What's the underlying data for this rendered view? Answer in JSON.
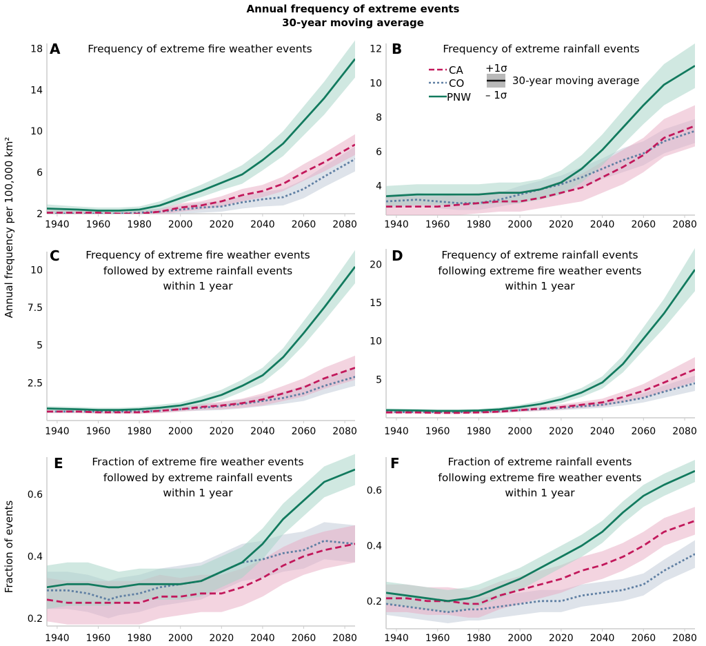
{
  "figure": {
    "title_line1": "Annual frequency of extreme events",
    "title_line2": "30-year moving average",
    "ylabel_top": "Annual frequency per 100,000 km²",
    "ylabel_bottom": "Fraction of events"
  },
  "legend": {
    "series": [
      {
        "name": "CA",
        "style": "dashed",
        "color": "#c2185b"
      },
      {
        "name": "CO",
        "style": "dotted",
        "color": "#5f7fa3"
      },
      {
        "name": "PNW",
        "style": "solid",
        "color": "#127a5e"
      }
    ],
    "band_upper": "+1σ",
    "band_lower": "– 1σ",
    "band_label": "30-year moving average"
  },
  "colors": {
    "CA": "#c2185b",
    "CO": "#5f7fa3",
    "PNW": "#127a5e",
    "CA_band": "#e8a9c2",
    "CO_band": "#c3ccd8",
    "PNW_band": "#a9d6c8"
  },
  "chart_data": [
    {
      "panel": "A",
      "type": "line",
      "title": [
        "Frequency of extreme fire weather events"
      ],
      "xlabel": "",
      "ylabel": "Annual frequency per 100,000 km²",
      "xlim": [
        1935,
        2085
      ],
      "ylim": [
        2,
        18.5
      ],
      "xticks": [
        1940,
        1960,
        1980,
        2000,
        2020,
        2040,
        2060,
        2080
      ],
      "yticks": [
        2,
        6,
        10,
        14,
        18
      ],
      "x": [
        1935,
        1950,
        1960,
        1970,
        1980,
        1990,
        2000,
        2010,
        2020,
        2030,
        2040,
        2050,
        2060,
        2070,
        2085
      ],
      "series": [
        {
          "name": "PNW",
          "values": [
            2.5,
            2.4,
            2.3,
            2.3,
            2.4,
            2.8,
            3.5,
            4.2,
            5.0,
            5.8,
            7.2,
            8.8,
            11.0,
            13.2,
            17.0
          ],
          "sd": [
            0.4,
            0.3,
            0.3,
            0.3,
            0.3,
            0.4,
            0.5,
            0.6,
            0.7,
            0.9,
            1.0,
            1.2,
            1.4,
            1.6,
            1.8
          ]
        },
        {
          "name": "CA",
          "values": [
            2.1,
            2.1,
            2.1,
            2.0,
            2.0,
            2.2,
            2.6,
            2.8,
            3.2,
            3.8,
            4.2,
            4.9,
            6.0,
            7.0,
            8.7
          ],
          "sd": [
            0.3,
            0.3,
            0.3,
            0.3,
            0.3,
            0.3,
            0.4,
            0.4,
            0.5,
            0.6,
            0.6,
            0.7,
            0.8,
            0.9,
            1.0
          ]
        },
        {
          "name": "CO",
          "values": [
            2.0,
            2.0,
            2.0,
            2.0,
            2.1,
            2.2,
            2.4,
            2.6,
            2.7,
            3.1,
            3.4,
            3.6,
            4.4,
            5.6,
            7.3
          ],
          "sd": [
            0.3,
            0.3,
            0.3,
            0.3,
            0.3,
            0.3,
            0.4,
            0.5,
            0.5,
            0.6,
            0.7,
            0.8,
            0.9,
            1.0,
            1.2
          ]
        }
      ]
    },
    {
      "panel": "B",
      "type": "line",
      "title": [
        "Frequency of extreme rainfall events"
      ],
      "xlabel": "",
      "ylabel": "",
      "xlim": [
        1935,
        2085
      ],
      "ylim": [
        2.3,
        12.3
      ],
      "xticks": [
        1940,
        1960,
        1980,
        2000,
        2020,
        2040,
        2060,
        2080
      ],
      "yticks": [
        4,
        6,
        8,
        10,
        12
      ],
      "x": [
        1935,
        1950,
        1960,
        1970,
        1980,
        1990,
        2000,
        2010,
        2020,
        2030,
        2040,
        2050,
        2060,
        2070,
        2085
      ],
      "series": [
        {
          "name": "PNW",
          "values": [
            3.4,
            3.5,
            3.5,
            3.5,
            3.5,
            3.6,
            3.6,
            3.8,
            4.2,
            5.0,
            6.1,
            7.4,
            8.7,
            9.9,
            11.0
          ],
          "sd": [
            0.6,
            0.6,
            0.6,
            0.6,
            0.6,
            0.6,
            0.6,
            0.6,
            0.7,
            0.8,
            0.9,
            1.0,
            1.1,
            1.2,
            1.3
          ]
        },
        {
          "name": "CA",
          "values": [
            2.8,
            2.8,
            2.8,
            2.9,
            3.0,
            3.1,
            3.1,
            3.3,
            3.6,
            3.9,
            4.5,
            5.1,
            5.8,
            6.8,
            7.5
          ],
          "sd": [
            0.6,
            0.6,
            0.6,
            0.6,
            0.6,
            0.6,
            0.6,
            0.6,
            0.7,
            0.8,
            0.9,
            1.0,
            1.0,
            1.1,
            1.2
          ]
        },
        {
          "name": "CO",
          "values": [
            3.1,
            3.2,
            3.1,
            3.0,
            3.0,
            3.2,
            3.5,
            3.8,
            4.1,
            4.5,
            5.0,
            5.5,
            5.9,
            6.6,
            7.2
          ],
          "sd": [
            0.4,
            0.4,
            0.4,
            0.4,
            0.4,
            0.4,
            0.5,
            0.5,
            0.5,
            0.6,
            0.6,
            0.7,
            0.7,
            0.7,
            0.7
          ]
        }
      ]
    },
    {
      "panel": "C",
      "type": "line",
      "title": [
        "Frequency of extreme fire weather events",
        "followed by extreme rainfall events",
        "within 1 year"
      ],
      "xlabel": "",
      "ylabel": "Annual frequency per 100,000 km²",
      "xlim": [
        1935,
        2085
      ],
      "ylim": [
        0,
        11.2
      ],
      "xticks": [
        1940,
        1960,
        1980,
        2000,
        2020,
        2040,
        2060,
        2080
      ],
      "yticks": [
        2.5,
        5,
        7.5,
        10
      ],
      "ytick_labels": [
        "2.5",
        "5",
        "7.5",
        "10"
      ],
      "x": [
        1935,
        1950,
        1960,
        1970,
        1980,
        1990,
        2000,
        2010,
        2020,
        2030,
        2040,
        2050,
        2060,
        2070,
        2085
      ],
      "series": [
        {
          "name": "PNW",
          "values": [
            0.8,
            0.75,
            0.7,
            0.7,
            0.75,
            0.85,
            1.0,
            1.3,
            1.7,
            2.3,
            3.0,
            4.2,
            5.8,
            7.5,
            10.2
          ],
          "sd": [
            0.15,
            0.15,
            0.15,
            0.15,
            0.15,
            0.2,
            0.2,
            0.3,
            0.35,
            0.4,
            0.5,
            0.6,
            0.8,
            0.9,
            1.1
          ]
        },
        {
          "name": "CA",
          "values": [
            0.6,
            0.6,
            0.55,
            0.55,
            0.55,
            0.65,
            0.75,
            0.9,
            1.0,
            1.15,
            1.4,
            1.8,
            2.2,
            2.8,
            3.5
          ],
          "sd": [
            0.1,
            0.1,
            0.1,
            0.1,
            0.1,
            0.15,
            0.15,
            0.2,
            0.25,
            0.3,
            0.4,
            0.5,
            0.6,
            0.7,
            0.8
          ]
        },
        {
          "name": "CO",
          "values": [
            0.6,
            0.6,
            0.6,
            0.6,
            0.6,
            0.65,
            0.75,
            0.85,
            0.95,
            1.1,
            1.3,
            1.5,
            1.8,
            2.3,
            2.9
          ],
          "sd": [
            0.1,
            0.1,
            0.1,
            0.1,
            0.1,
            0.15,
            0.15,
            0.2,
            0.25,
            0.3,
            0.35,
            0.4,
            0.5,
            0.55,
            0.6
          ]
        }
      ]
    },
    {
      "panel": "D",
      "type": "line",
      "title": [
        "Frequency of extreme rainfall events",
        "following extreme fire weather events",
        "within 1 year"
      ],
      "xlabel": "",
      "ylabel": "",
      "xlim": [
        1935,
        2085
      ],
      "ylim": [
        0,
        22
      ],
      "xticks": [
        1940,
        1960,
        1980,
        2000,
        2020,
        2040,
        2060,
        2080
      ],
      "yticks": [
        5,
        10,
        15,
        20
      ],
      "x": [
        1935,
        1950,
        1960,
        1970,
        1980,
        1990,
        2000,
        2010,
        2020,
        2030,
        2040,
        2050,
        2060,
        2070,
        2085
      ],
      "series": [
        {
          "name": "PNW",
          "values": [
            1.0,
            0.95,
            0.9,
            0.9,
            0.95,
            1.1,
            1.4,
            1.8,
            2.4,
            3.3,
            4.6,
            7.0,
            10.3,
            13.6,
            19.3
          ],
          "sd": [
            0.2,
            0.2,
            0.2,
            0.2,
            0.2,
            0.25,
            0.3,
            0.4,
            0.5,
            0.6,
            0.8,
            1.1,
            1.5,
            1.9,
            2.8
          ]
        },
        {
          "name": "CA",
          "values": [
            0.7,
            0.7,
            0.65,
            0.65,
            0.7,
            0.8,
            1.0,
            1.2,
            1.4,
            1.7,
            2.0,
            2.7,
            3.5,
            4.6,
            6.3
          ],
          "sd": [
            0.15,
            0.15,
            0.15,
            0.15,
            0.15,
            0.2,
            0.25,
            0.3,
            0.35,
            0.4,
            0.5,
            0.7,
            0.9,
            1.2,
            1.6
          ]
        },
        {
          "name": "CO",
          "values": [
            0.75,
            0.75,
            0.75,
            0.75,
            0.8,
            0.85,
            1.0,
            1.15,
            1.3,
            1.5,
            1.7,
            2.1,
            2.6,
            3.4,
            4.5
          ],
          "sd": [
            0.15,
            0.15,
            0.15,
            0.15,
            0.15,
            0.2,
            0.2,
            0.25,
            0.3,
            0.35,
            0.4,
            0.5,
            0.6,
            0.8,
            1.0
          ]
        }
      ]
    },
    {
      "panel": "E",
      "type": "line",
      "title": [
        "Fraction of extreme fire weather events",
        "followed by extreme rainfall events",
        "within 1 year"
      ],
      "xlabel": "",
      "ylabel": "Fraction of events",
      "xlim": [
        1935,
        2085
      ],
      "ylim": [
        0.175,
        0.72
      ],
      "xticks": [
        1940,
        1960,
        1980,
        2000,
        2020,
        2040,
        2060,
        2080
      ],
      "yticks": [
        0.2,
        0.4,
        0.6
      ],
      "x": [
        1935,
        1945,
        1955,
        1965,
        1970,
        1980,
        1990,
        2000,
        2010,
        2020,
        2030,
        2040,
        2050,
        2060,
        2070,
        2085
      ],
      "series": [
        {
          "name": "PNW",
          "values": [
            0.3,
            0.31,
            0.31,
            0.3,
            0.3,
            0.31,
            0.31,
            0.31,
            0.32,
            0.35,
            0.38,
            0.44,
            0.52,
            0.58,
            0.64,
            0.68
          ],
          "sd": [
            0.07,
            0.07,
            0.07,
            0.06,
            0.05,
            0.05,
            0.05,
            0.05,
            0.05,
            0.05,
            0.05,
            0.05,
            0.05,
            0.05,
            0.05,
            0.05
          ]
        },
        {
          "name": "CA",
          "values": [
            0.26,
            0.25,
            0.25,
            0.25,
            0.25,
            0.25,
            0.27,
            0.27,
            0.28,
            0.28,
            0.3,
            0.33,
            0.37,
            0.4,
            0.42,
            0.44
          ],
          "sd": [
            0.07,
            0.07,
            0.07,
            0.07,
            0.07,
            0.07,
            0.07,
            0.06,
            0.06,
            0.06,
            0.06,
            0.06,
            0.06,
            0.06,
            0.06,
            0.06
          ]
        },
        {
          "name": "CO",
          "values": [
            0.29,
            0.29,
            0.28,
            0.26,
            0.27,
            0.28,
            0.3,
            0.31,
            0.32,
            0.35,
            0.38,
            0.39,
            0.41,
            0.42,
            0.45,
            0.44
          ],
          "sd": [
            0.06,
            0.06,
            0.06,
            0.06,
            0.06,
            0.06,
            0.06,
            0.06,
            0.06,
            0.06,
            0.06,
            0.06,
            0.06,
            0.06,
            0.06,
            0.06
          ]
        }
      ]
    },
    {
      "panel": "F",
      "type": "line",
      "title": [
        "Fraction of extreme rainfall events",
        "following extreme fire weather events",
        "within 1 year"
      ],
      "xlabel": "",
      "ylabel": "",
      "xlim": [
        1935,
        2085
      ],
      "ylim": [
        0.1,
        0.72
      ],
      "xticks": [
        1940,
        1960,
        1980,
        2000,
        2020,
        2040,
        2060,
        2080
      ],
      "yticks": [
        0.2,
        0.4,
        0.6
      ],
      "x": [
        1935,
        1945,
        1955,
        1965,
        1975,
        1980,
        1990,
        2000,
        2010,
        2020,
        2030,
        2040,
        2050,
        2060,
        2070,
        2085
      ],
      "series": [
        {
          "name": "PNW",
          "values": [
            0.23,
            0.22,
            0.21,
            0.2,
            0.21,
            0.22,
            0.25,
            0.28,
            0.32,
            0.36,
            0.4,
            0.45,
            0.52,
            0.58,
            0.62,
            0.67
          ],
          "sd": [
            0.04,
            0.04,
            0.04,
            0.04,
            0.04,
            0.04,
            0.04,
            0.04,
            0.04,
            0.04,
            0.04,
            0.04,
            0.04,
            0.04,
            0.04,
            0.04
          ]
        },
        {
          "name": "CA",
          "values": [
            0.21,
            0.21,
            0.2,
            0.2,
            0.19,
            0.19,
            0.22,
            0.24,
            0.26,
            0.28,
            0.31,
            0.33,
            0.36,
            0.4,
            0.45,
            0.49
          ],
          "sd": [
            0.05,
            0.05,
            0.05,
            0.05,
            0.05,
            0.05,
            0.05,
            0.05,
            0.05,
            0.05,
            0.05,
            0.05,
            0.05,
            0.05,
            0.05,
            0.05
          ]
        },
        {
          "name": "CO",
          "values": [
            0.19,
            0.18,
            0.17,
            0.16,
            0.17,
            0.17,
            0.18,
            0.19,
            0.2,
            0.2,
            0.22,
            0.23,
            0.24,
            0.26,
            0.31,
            0.37
          ],
          "sd": [
            0.04,
            0.04,
            0.04,
            0.04,
            0.04,
            0.04,
            0.04,
            0.04,
            0.04,
            0.04,
            0.04,
            0.04,
            0.04,
            0.04,
            0.04,
            0.05
          ]
        }
      ]
    }
  ]
}
